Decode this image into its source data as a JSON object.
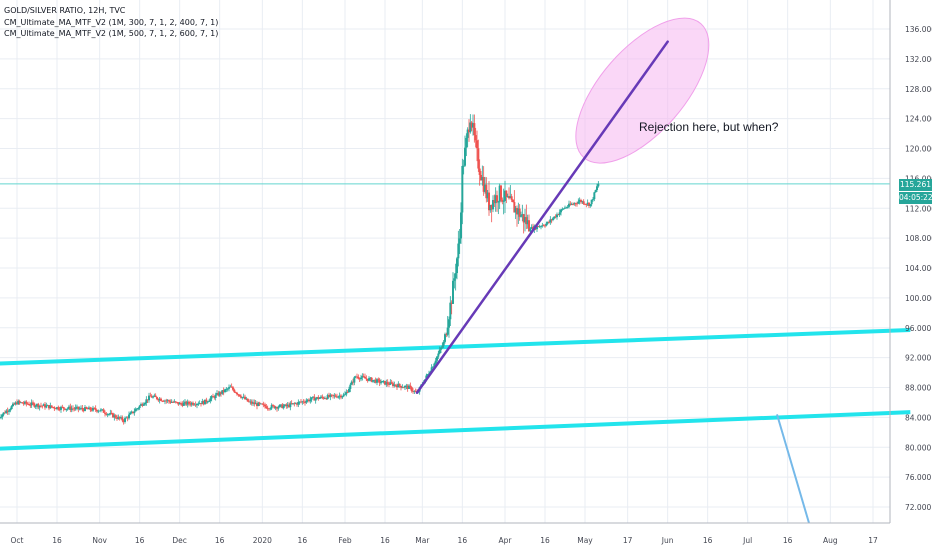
{
  "legend": {
    "title": "GOLD/SILVER RATIO, 12H, TVC",
    "indicators": [
      "CM_Ultimate_MA_MTF_V2 (1M, 300, 7, 1, 2, 400, 7, 1)",
      "CM_Ultimate_MA_MTF_V2 (1M, 500, 7, 1, 2, 600, 7, 1)"
    ]
  },
  "colors": {
    "background": "#ffffff",
    "grid": "#e9edf3",
    "up_candle": "#26a69a",
    "down_candle": "#ef5350",
    "channel": "#22e4ec",
    "trendline": "#673ab7",
    "ellipse_fill": "#f6b6f0",
    "price_line": "#63d5cf",
    "arrow": "#75b9e9",
    "axis_text": "#434651"
  },
  "price_tag": {
    "price": "115.261",
    "countdown": "04:05:22"
  },
  "annotation": "Rejection here, but when?",
  "chart_data": {
    "type": "candlestick",
    "title": "GOLD/SILVER RATIO, 12H, TVC",
    "ylim": [
      70,
      138
    ],
    "x_tick_labels": [
      "Oct",
      "16",
      "Nov",
      "16",
      "Dec",
      "16",
      "2020",
      "16",
      "Feb",
      "16",
      "Mar",
      "16",
      "Apr",
      "16",
      "May",
      "17",
      "Jun",
      "16",
      "Jul",
      "16",
      "Aug",
      "17"
    ],
    "y_tick_labels": [
      "72.000",
      "76.000",
      "80.000",
      "84.000",
      "88.000",
      "92.000",
      "96.000",
      "100.000",
      "104.000",
      "108.000",
      "112.000",
      "116.000",
      "120.000",
      "124.000",
      "128.000",
      "132.000",
      "136.000"
    ],
    "last_price": 115.261,
    "close_waypoints": [
      {
        "date": "Sep 24",
        "close": 84.0
      },
      {
        "date": "Oct 1",
        "close": 86.0
      },
      {
        "date": "Oct 16",
        "close": 85.3
      },
      {
        "date": "Nov 1",
        "close": 85.0
      },
      {
        "date": "Nov 10",
        "close": 83.6
      },
      {
        "date": "Nov 20",
        "close": 86.8
      },
      {
        "date": "Dec 1",
        "close": 85.8
      },
      {
        "date": "Dec 10",
        "close": 86.0
      },
      {
        "date": "Dec 20",
        "close": 88.0
      },
      {
        "date": "Dec 27",
        "close": 86.0
      },
      {
        "date": "Jan 3",
        "close": 85.4
      },
      {
        "date": "Jan 10",
        "close": 85.5
      },
      {
        "date": "Jan 20",
        "close": 86.5
      },
      {
        "date": "Feb 1",
        "close": 87.0
      },
      {
        "date": "Feb 5",
        "close": 89.5
      },
      {
        "date": "Feb 16",
        "close": 88.6
      },
      {
        "date": "Feb 25",
        "close": 88.0
      },
      {
        "date": "Feb 28",
        "close": 87.2
      },
      {
        "date": "Mar 5",
        "close": 91.0
      },
      {
        "date": "Mar 9",
        "close": 94.0
      },
      {
        "date": "Mar 12",
        "close": 100.0
      },
      {
        "date": "Mar 15",
        "close": 108.0
      },
      {
        "date": "Mar 16",
        "close": 117.0
      },
      {
        "date": "Mar 19",
        "close": 124.5
      },
      {
        "date": "Mar 22",
        "close": 118.0
      },
      {
        "date": "Mar 26",
        "close": 112.5
      },
      {
        "date": "Mar 30",
        "close": 114.0
      },
      {
        "date": "Apr 6",
        "close": 111.5
      },
      {
        "date": "Apr 11",
        "close": 109.3
      },
      {
        "date": "Apr 17",
        "close": 110.0
      },
      {
        "date": "Apr 23",
        "close": 112.0
      },
      {
        "date": "Apr 29",
        "close": 113.0
      },
      {
        "date": "May 3",
        "close": 112.5
      },
      {
        "date": "May 6",
        "close": 115.3
      }
    ],
    "drawings": {
      "channel_upper": {
        "from": {
          "date": "Sep 24",
          "value": 91.2
        },
        "to": {
          "date": "Aug 31",
          "value": 95.7
        }
      },
      "channel_lower": {
        "from": {
          "date": "Sep 24",
          "value": 79.8
        },
        "to": {
          "date": "Aug 31",
          "value": 84.7
        }
      },
      "trendline": {
        "from": {
          "date": "Feb 28",
          "value": 87.3
        },
        "to": {
          "date": "Jun 1",
          "value": 134.3
        }
      },
      "horizontal_price_line": 115.261,
      "arrow": {
        "from": {
          "date": "Jul 12",
          "value": 84.4
        },
        "to": {
          "date": "Jul 24",
          "value": 70.0
        }
      }
    }
  }
}
